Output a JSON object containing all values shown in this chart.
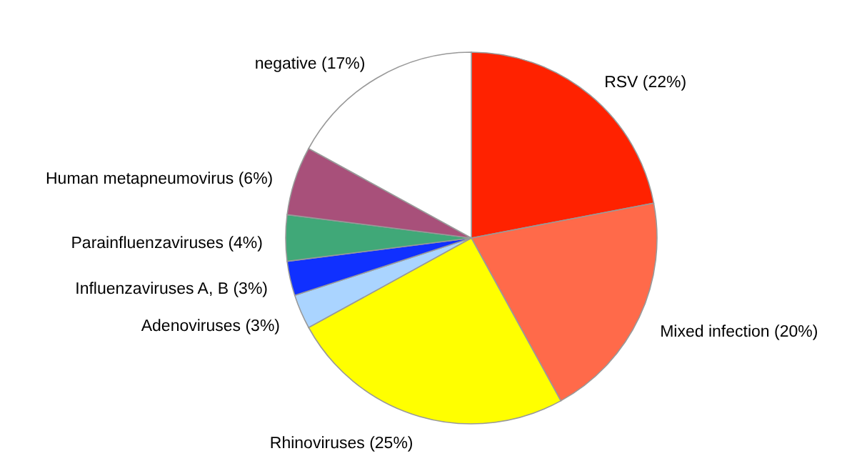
{
  "chart_data": {
    "type": "pie",
    "categories": [
      "RSV (22%)",
      "Mixed infection (20%)",
      "Rhinoviruses (25%)",
      "Adenoviruses (3%)",
      "Influenzaviruses A, B (3%)",
      "Parainfluenzaviruses (4%)",
      "Human metapneumovirus (6%)",
      "negative (17%)"
    ],
    "values": [
      22,
      20,
      25,
      3,
      3,
      4,
      6,
      17
    ],
    "colors": [
      "#ff2200",
      "#ff6a4a",
      "#ffff00",
      "#aad4ff",
      "#1030ff",
      "#40a878",
      "#a8507a",
      "#ffffff"
    ]
  }
}
